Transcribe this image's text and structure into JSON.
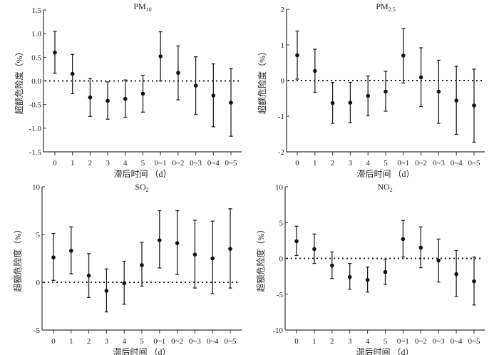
{
  "chart_data": [
    {
      "type": "errorbar",
      "title": "PM",
      "title_sub": "10",
      "xlabel": "滞后时间 （d）",
      "ylabel": "超额危险度（%）",
      "categories": [
        "0",
        "1",
        "2",
        "3",
        "4",
        "5",
        "0~1",
        "0~2",
        "0~3",
        "0~4",
        "0~5"
      ],
      "ylim": [
        -1.5,
        1.5
      ],
      "yticks": [
        -1.5,
        -1.0,
        -0.5,
        0.0,
        0.5,
        1.0,
        1.5
      ],
      "ytick_labels": [
        "-1.5",
        "-1.0",
        "-0.5",
        "0.0",
        "0.5",
        "1.0",
        "1.5"
      ],
      "values": [
        0.6,
        0.15,
        -0.35,
        -0.42,
        -0.38,
        -0.27,
        0.52,
        0.17,
        -0.1,
        -0.31,
        -0.46
      ],
      "lower": [
        0.16,
        -0.27,
        -0.75,
        -0.81,
        -0.77,
        -0.66,
        0.0,
        -0.4,
        -0.71,
        -0.97,
        -1.17
      ],
      "upper": [
        1.05,
        0.56,
        0.05,
        -0.02,
        0.02,
        0.12,
        1.04,
        0.74,
        0.51,
        0.36,
        0.26
      ],
      "reference_line": 0
    },
    {
      "type": "errorbar",
      "title": "PM",
      "title_sub": "2.5",
      "xlabel": "滞后时间 （d）",
      "ylabel": "超额危险度（%）",
      "categories": [
        "0",
        "1",
        "2",
        "3",
        "4",
        "5",
        "0~1",
        "0~2",
        "0~3",
        "0~4",
        "0~5"
      ],
      "ylim": [
        -2,
        2
      ],
      "yticks": [
        -2,
        -1,
        0,
        1,
        2
      ],
      "ytick_labels": [
        "-2",
        "-1",
        "0",
        "1",
        "2"
      ],
      "values": [
        0.71,
        0.27,
        -0.63,
        -0.62,
        -0.43,
        -0.31,
        0.7,
        0.09,
        -0.31,
        -0.56,
        -0.7
      ],
      "lower": [
        0.04,
        -0.33,
        -1.2,
        -1.18,
        -0.99,
        -0.86,
        -0.07,
        -0.73,
        -1.2,
        -1.51,
        -1.73
      ],
      "upper": [
        1.39,
        0.88,
        -0.05,
        -0.05,
        0.13,
        0.26,
        1.46,
        0.92,
        0.57,
        0.4,
        0.32
      ],
      "reference_line": 0
    },
    {
      "type": "errorbar",
      "title": "SO",
      "title_sub": "2",
      "xlabel": "滞后时间 （d）",
      "ylabel": "超额危险度（%）",
      "categories": [
        "0",
        "1",
        "2",
        "3",
        "4",
        "5",
        "0~1",
        "0~2",
        "0~3",
        "0~4",
        "0~5"
      ],
      "ylim": [
        -5,
        10
      ],
      "yticks": [
        -5,
        0,
        5,
        10
      ],
      "ytick_labels": [
        "-5",
        "0",
        "5",
        "10"
      ],
      "values": [
        2.6,
        3.3,
        0.7,
        -0.9,
        -0.1,
        1.8,
        4.4,
        4.1,
        2.9,
        2.5,
        3.5
      ],
      "lower": [
        0.2,
        0.9,
        -1.6,
        -3.1,
        -2.3,
        -0.4,
        1.5,
        0.8,
        -0.6,
        -1.2,
        -0.6
      ],
      "upper": [
        5.1,
        5.8,
        3.0,
        1.4,
        2.2,
        4.2,
        7.5,
        7.5,
        6.5,
        6.4,
        7.7
      ],
      "reference_line": 0
    },
    {
      "type": "errorbar",
      "title": "NO",
      "title_sub": "2",
      "xlabel": "滞后时间 （d）",
      "ylabel": "超额危险度（%）",
      "categories": [
        "0",
        "1",
        "2",
        "3",
        "4",
        "5",
        "0~1",
        "0~2",
        "0~3",
        "0~4",
        "0~5"
      ],
      "ylim": [
        -10,
        10
      ],
      "yticks": [
        -10,
        -5,
        0,
        5,
        10
      ],
      "ytick_labels": [
        "-10",
        "-5",
        "0",
        "5",
        "10"
      ],
      "values": [
        2.4,
        1.3,
        -1.0,
        -2.6,
        -3.0,
        -1.9,
        2.7,
        1.5,
        -0.3,
        -2.2,
        -3.2
      ],
      "lower": [
        0.4,
        -0.7,
        -2.8,
        -4.3,
        -4.7,
        -3.6,
        0.2,
        -1.3,
        -3.3,
        -5.3,
        -6.5
      ],
      "upper": [
        4.5,
        3.4,
        0.9,
        -0.7,
        -1.2,
        -0.1,
        5.3,
        4.4,
        2.7,
        1.1,
        0.2
      ],
      "reference_line": 0
    }
  ]
}
